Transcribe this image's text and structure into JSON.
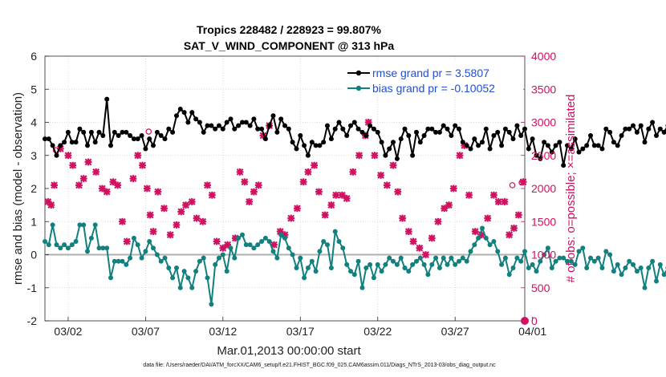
{
  "chart_data": {
    "type": "line",
    "title": "Tropics 228482 / 228923 = 99.807%",
    "subtitle": "SAT_V_WIND_COMPONENT @ 313 hPa",
    "xlabel": "Mar.01,2013 00:00:00 start",
    "ylabel_left": "rmse and bias (model - observation)",
    "ylabel_right": "# of obs: o=possible; ×=assimilated",
    "footer": "data file: /Users/raeder/DAI/ATM_forcXX/CAM6_setup/f.e21.FHIST_BGC.f09_025.CAM6assim.011/Diags_NTrS_2013-03/obs_diag_output.nc",
    "xlim": [
      0.5,
      31.5
    ],
    "ylim": [
      -2,
      6
    ],
    "ylim_right": [
      0,
      4000
    ],
    "x_ticks": [
      2,
      7,
      12,
      17,
      22,
      27,
      32
    ],
    "x_tick_labels": [
      "03/02",
      "03/07",
      "03/12",
      "03/17",
      "03/22",
      "03/27",
      "04/01"
    ],
    "y_ticks": [
      -2,
      -1,
      0,
      1,
      2,
      3,
      4,
      5,
      6
    ],
    "y_ticks_right": [
      0,
      500,
      1000,
      1500,
      2000,
      2500,
      3000,
      3500,
      4000
    ],
    "legend": {
      "position": "top-right",
      "entries": [
        "rmse grand pr = 3.5807",
        "bias grand pr = -0.10052"
      ]
    },
    "colors": {
      "rmse": "#000000",
      "bias": "#138080",
      "obs": "#d01060",
      "legend_text": "#1f4fd6",
      "zero_line": "#b0b0b0"
    },
    "x_start": 0.5,
    "x_step": 0.25,
    "series": [
      {
        "name": "rmse",
        "values": [
          3.5,
          3.5,
          3.3,
          3.0,
          3.3,
          3.4,
          3.7,
          3.4,
          3.4,
          3.8,
          3.7,
          3.3,
          3.7,
          3.4,
          3.7,
          3.6,
          4.7,
          3.3,
          3.7,
          3.6,
          3.7,
          3.7,
          3.6,
          3.5,
          3.5,
          3.6,
          3.2,
          3.5,
          3.3,
          3.7,
          3.6,
          3.5,
          3.8,
          3.7,
          4.2,
          4.4,
          4.3,
          4.0,
          4.3,
          4.1,
          4.0,
          3.7,
          3.9,
          3.9,
          3.8,
          3.9,
          3.8,
          4.0,
          4.1,
          3.8,
          3.9,
          4.0,
          4.0,
          3.9,
          4.1,
          3.8,
          3.8,
          3.5,
          3.9,
          4.2,
          3.7,
          4.1,
          3.9,
          3.8,
          3.4,
          3.2,
          3.6,
          3.3,
          3.0,
          3.4,
          3.3,
          3.3,
          3.4,
          3.9,
          3.5,
          3.8,
          4.0,
          3.8,
          3.6,
          3.9,
          4.0,
          3.8,
          3.7,
          3.6,
          3.9,
          3.8,
          3.7,
          3.4,
          3.0,
          3.2,
          3.4,
          2.9,
          3.5,
          3.8,
          3.6,
          3.0,
          3.7,
          3.4,
          3.6,
          3.8,
          3.8,
          3.7,
          3.7,
          3.9,
          3.8,
          3.6,
          3.9,
          3.8,
          3.4,
          3.3,
          3.2,
          3.5,
          3.3,
          3.4,
          3.8,
          3.2,
          3.6,
          3.7,
          3.3,
          3.8,
          3.7,
          3.5,
          3.9,
          3.6,
          3.8,
          3.2,
          3.5,
          3.0,
          2.9,
          3.4,
          3.3,
          3.1,
          3.3,
          3.4,
          2.7,
          3.3,
          3.2,
          3.5,
          3.1,
          3.2,
          3.3,
          3.6,
          3.3,
          3.3,
          3.2,
          3.8,
          3.7,
          3.4,
          3.3,
          3.6,
          3.8,
          3.8,
          3.9,
          3.7,
          3.9,
          3.4,
          3.8,
          4.0,
          3.6,
          3.8,
          3.7,
          3.9,
          4.0,
          3.7,
          3.5,
          3.4,
          3.4
        ],
        "color": "#000000"
      },
      {
        "name": "bias",
        "values": [
          0.4,
          0.3,
          0.9,
          0.3,
          0.2,
          0.3,
          0.2,
          0.3,
          0.4,
          0.9,
          0.9,
          0.1,
          0.5,
          0.9,
          0.2,
          0.2,
          0.2,
          -0.7,
          -0.2,
          -0.2,
          -0.2,
          -0.3,
          -0.1,
          0.5,
          0.3,
          -0.1,
          0.1,
          0.4,
          0.2,
          0.0,
          -0.2,
          -0.1,
          -0.4,
          -0.7,
          -0.4,
          -1.0,
          -0.5,
          -0.7,
          -1.0,
          -0.5,
          -0.2,
          -0.1,
          -0.7,
          -1.5,
          -0.3,
          -0.1,
          0.0,
          -0.5,
          0.2,
          -0.1,
          0.5,
          0.6,
          0.3,
          0.3,
          0.2,
          0.3,
          0.4,
          0.5,
          0.4,
          0.1,
          -0.1,
          0.6,
          0.5,
          0.2,
          0.0,
          -0.4,
          -0.1,
          -0.7,
          -0.4,
          -0.2,
          -0.5,
          0.1,
          0.4,
          0.3,
          -0.4,
          0.7,
          0.4,
          0.2,
          -0.3,
          -0.5,
          -0.6,
          -0.2,
          -1.0,
          -0.4,
          -0.3,
          -0.7,
          -0.3,
          -0.5,
          -0.3,
          -0.1,
          -0.2,
          -0.3,
          -0.1,
          -0.4,
          -0.5,
          -0.3,
          -0.2,
          -0.1,
          -0.3,
          -0.6,
          -0.3,
          -0.1,
          -0.4,
          -0.1,
          -0.3,
          -0.1,
          -0.3,
          -0.2,
          -0.1,
          -0.2,
          0.1,
          0.3,
          0.5,
          0.8,
          0.5,
          0.3,
          0.4,
          0.1,
          -0.3,
          -0.1,
          -0.6,
          -0.4,
          -0.1,
          -0.2,
          0.1,
          -0.4,
          -0.3,
          -0.5,
          -0.2,
          0.0,
          0.2,
          -0.4,
          -0.2,
          -0.1,
          -0.1,
          -0.2,
          -0.2,
          -0.3,
          0.1,
          0.2,
          -0.4,
          -0.1,
          -0.2,
          -0.1,
          -0.4,
          0.1,
          0.0,
          -0.5,
          -0.3,
          -0.6,
          -0.4,
          -0.2,
          -0.3,
          -0.5,
          -0.4,
          -1.0,
          -0.4,
          -0.2,
          -0.8,
          -0.3,
          -0.6,
          -0.4,
          -0.1,
          0.1,
          -0.1
        ],
        "color": "#138080"
      }
    ],
    "obs_series": [
      {
        "name": "assimilated",
        "x": [
          0.7,
          0.9,
          1.1,
          1.5,
          2.0,
          2.3,
          2.7,
          3.0,
          3.3,
          3.8,
          4.2,
          4.5,
          4.9,
          5.2,
          5.5,
          5.8,
          6.2,
          6.5,
          6.8,
          7.1,
          7.3,
          7.5,
          7.8,
          8.2,
          8.6,
          9.0,
          9.3,
          9.6,
          10.0,
          10.3,
          10.7,
          11.0,
          11.3,
          11.6,
          12.0,
          12.3,
          12.8,
          13.1,
          13.4,
          13.7,
          14.0,
          14.3,
          14.6,
          15.0,
          15.3,
          15.7,
          16.0,
          16.4,
          16.8,
          17.2,
          17.5,
          17.9,
          18.2,
          18.6,
          19.0,
          19.3,
          19.7,
          20.0,
          20.4,
          20.8,
          21.2,
          21.4,
          21.8,
          22.2,
          22.6,
          23.0,
          23.3,
          23.6,
          24.0,
          24.3,
          24.7,
          25.1,
          25.5,
          25.9,
          26.3,
          26.6,
          26.9,
          27.3,
          27.6,
          27.9,
          28.3,
          28.7,
          29.1,
          29.5,
          29.8,
          30.2,
          30.5,
          30.8,
          31.1,
          31.4
        ],
        "y": [
          1800,
          1750,
          2050,
          2600,
          2500,
          2350,
          2050,
          2150,
          2400,
          2250,
          2000,
          1950,
          2100,
          2050,
          1500,
          1200,
          2150,
          2500,
          2350,
          2000,
          1600,
          1350,
          1950,
          1700,
          1300,
          1450,
          1650,
          1750,
          1800,
          1550,
          1500,
          2050,
          1900,
          1200,
          1100,
          1150,
          1250,
          2250,
          2100,
          1800,
          1950,
          2050,
          2800,
          2950,
          1150,
          1350,
          1300,
          1550,
          1700,
          2100,
          2250,
          2350,
          1950,
          1600,
          1750,
          1900,
          1900,
          1850,
          2250,
          2500,
          2800,
          3000,
          2500,
          2200,
          2050,
          2350,
          1950,
          1550,
          1350,
          1200,
          1100,
          1000,
          1250,
          1500,
          1700,
          1750,
          2000,
          2500,
          2650,
          1900,
          1350,
          1300,
          1550,
          1900,
          1800,
          1800,
          1300,
          1400,
          1600,
          2100
        ]
      },
      {
        "name": "possible",
        "x": [
          1.2,
          7.2,
          30.7,
          31.3
        ],
        "y": [
          2580,
          2860,
          2050,
          2090
        ]
      }
    ]
  }
}
